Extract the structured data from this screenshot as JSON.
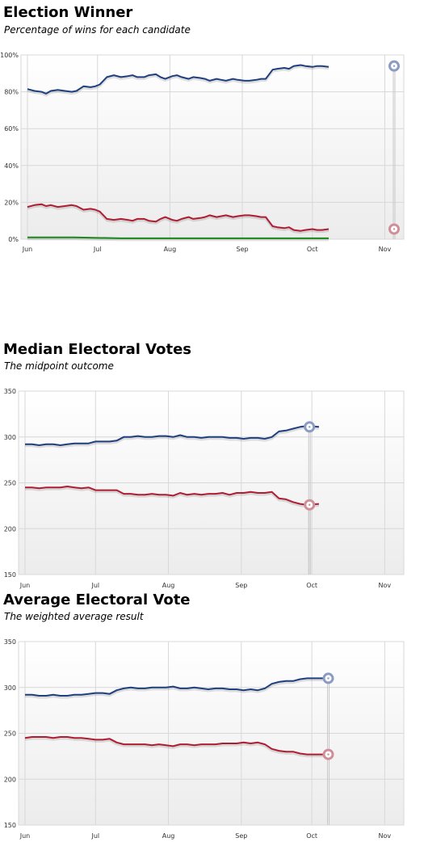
{
  "charts": {
    "winner": {
      "title": "Election Winner",
      "subtitle": "Percentage of wins for each candidate"
    },
    "median": {
      "title": "Median Electoral Votes",
      "subtitle": "The midpoint outcome"
    },
    "average": {
      "title": "Average Electoral Vote",
      "subtitle": "The weighted average result"
    }
  },
  "colors": {
    "democrat": "#1f3f7f",
    "republican": "#b01c32",
    "other": "#1a8a1a",
    "democrat_marker": "#8a9cc4",
    "republican_marker": "#d08e98",
    "grid": "#d8d8d8",
    "plot_top": "#ffffff",
    "plot_bottom": "#ececec"
  },
  "chart_data": [
    {
      "id": "winner",
      "type": "line",
      "title": "Election Winner",
      "subtitle": "Percentage of wins for each candidate",
      "x_ticks": [
        "Jun",
        "Jul",
        "Aug",
        "Sep",
        "Oct",
        "Nov"
      ],
      "y_ticks": [
        "0%",
        "20%",
        "40%",
        "60%",
        "80%",
        "100%"
      ],
      "ylim": [
        0,
        100
      ],
      "x_range_days": [
        0,
        157
      ],
      "grid": true,
      "series": [
        {
          "key": "democrat",
          "days": [
            0,
            3,
            6,
            8,
            10,
            13,
            16,
            19,
            21,
            24,
            27,
            29,
            31,
            34,
            37,
            40,
            43,
            45,
            47,
            50,
            52,
            55,
            57,
            59,
            62,
            64,
            66,
            69,
            71,
            74,
            76,
            78,
            81,
            83,
            85,
            88,
            90,
            93,
            95,
            98,
            100,
            102,
            105,
            107,
            110,
            112,
            114,
            117,
            119,
            122,
            124,
            126,
            129
          ],
          "values": [
            81.5,
            80.5,
            80,
            79,
            80.5,
            81,
            80.5,
            80,
            80.5,
            83,
            82.5,
            83,
            84,
            88,
            89,
            88,
            88.5,
            89,
            88,
            88,
            89,
            89.5,
            88,
            87,
            88.5,
            89,
            88,
            87,
            88,
            87.5,
            87,
            86,
            87,
            86.5,
            86,
            87,
            86.5,
            86,
            86,
            86.5,
            87,
            87,
            92,
            92.5,
            93,
            92.5,
            94,
            94.5,
            94,
            93.5,
            94,
            94,
            93.5
          ]
        },
        {
          "key": "republican",
          "days": [
            0,
            3,
            6,
            8,
            10,
            13,
            16,
            19,
            21,
            24,
            27,
            29,
            31,
            34,
            37,
            40,
            43,
            45,
            47,
            50,
            52,
            55,
            57,
            59,
            62,
            64,
            66,
            69,
            71,
            74,
            76,
            78,
            81,
            83,
            85,
            88,
            90,
            93,
            95,
            98,
            100,
            102,
            105,
            107,
            110,
            112,
            114,
            117,
            119,
            122,
            124,
            126,
            129
          ],
          "values": [
            17.5,
            18.5,
            19,
            18,
            18.5,
            17.5,
            18,
            18.5,
            18,
            16,
            16.5,
            16,
            15,
            11,
            10.5,
            11,
            10.5,
            10,
            11,
            11,
            10,
            9.5,
            11,
            12,
            10.5,
            10,
            11,
            12,
            11,
            11.5,
            12,
            13,
            12,
            12.5,
            13,
            12,
            12.5,
            13,
            13,
            12.5,
            12,
            12,
            7,
            6.5,
            6,
            6.5,
            5,
            4.5,
            5,
            5.5,
            5,
            5,
            5.5
          ]
        },
        {
          "key": "other",
          "days": [
            0,
            20,
            40,
            60,
            80,
            100,
            120,
            129
          ],
          "values": [
            1,
            1,
            0.5,
            0.5,
            0.5,
            0.5,
            0.5,
            0.5
          ]
        }
      ],
      "markers": [
        {
          "key": "democrat",
          "day": 157,
          "value": 94
        },
        {
          "key": "republican",
          "day": 157,
          "value": 5.5
        }
      ]
    },
    {
      "id": "median",
      "type": "line",
      "title": "Median Electoral Votes",
      "subtitle": "The midpoint outcome",
      "x_ticks": [
        "Jun",
        "Jul",
        "Aug",
        "Sep",
        "Oct",
        "Nov"
      ],
      "y_ticks": [
        "150",
        "200",
        "250",
        "300",
        "350"
      ],
      "ylim": [
        150,
        350
      ],
      "x_range_days": [
        0,
        157
      ],
      "grid": true,
      "series": [
        {
          "key": "democrat",
          "days": [
            0,
            3,
            6,
            9,
            12,
            15,
            18,
            21,
            24,
            27,
            30,
            33,
            36,
            39,
            42,
            45,
            48,
            51,
            54,
            57,
            60,
            63,
            66,
            69,
            72,
            75,
            78,
            81,
            84,
            87,
            90,
            93,
            96,
            99,
            102,
            105,
            108,
            111,
            114,
            117,
            120,
            125
          ],
          "values": [
            292,
            292,
            291,
            292,
            292,
            291,
            292,
            293,
            293,
            293,
            295,
            295,
            295,
            296,
            300,
            300,
            301,
            300,
            300,
            301,
            301,
            300,
            302,
            300,
            300,
            299,
            300,
            300,
            300,
            299,
            299,
            298,
            299,
            299,
            298,
            300,
            306,
            307,
            309,
            311,
            312,
            311
          ]
        },
        {
          "key": "republican",
          "days": [
            0,
            3,
            6,
            9,
            12,
            15,
            18,
            21,
            24,
            27,
            30,
            33,
            36,
            39,
            42,
            45,
            48,
            51,
            54,
            57,
            60,
            63,
            66,
            69,
            72,
            75,
            78,
            81,
            84,
            87,
            90,
            93,
            96,
            99,
            102,
            105,
            108,
            111,
            114,
            117,
            120,
            125
          ],
          "values": [
            245,
            245,
            244,
            245,
            245,
            245,
            246,
            245,
            244,
            245,
            242,
            242,
            242,
            242,
            238,
            238,
            237,
            237,
            238,
            237,
            237,
            236,
            239,
            237,
            238,
            237,
            238,
            238,
            239,
            237,
            239,
            239,
            240,
            239,
            239,
            240,
            233,
            232,
            229,
            227,
            226,
            227
          ]
        }
      ],
      "markers": [
        {
          "key": "democrat",
          "day": 121,
          "value": 311
        },
        {
          "key": "republican",
          "day": 121,
          "value": 226
        }
      ]
    },
    {
      "id": "average",
      "type": "line",
      "title": "Average Electoral Vote",
      "subtitle": "The weighted average result",
      "x_ticks": [
        "Jun",
        "Jul",
        "Aug",
        "Sep",
        "Oct",
        "Nov"
      ],
      "y_ticks": [
        "150",
        "200",
        "250",
        "300",
        "350"
      ],
      "ylim": [
        150,
        350
      ],
      "x_range_days": [
        0,
        157
      ],
      "grid": true,
      "series": [
        {
          "key": "democrat",
          "days": [
            0,
            3,
            6,
            9,
            12,
            15,
            18,
            21,
            24,
            27,
            30,
            33,
            36,
            39,
            42,
            45,
            48,
            51,
            54,
            57,
            60,
            63,
            66,
            69,
            72,
            75,
            78,
            81,
            84,
            87,
            90,
            93,
            96,
            99,
            102,
            105,
            108,
            111,
            114,
            117,
            120,
            125,
            129
          ],
          "values": [
            292,
            292,
            291,
            291,
            292,
            291,
            291,
            292,
            292,
            293,
            294,
            294,
            293,
            297,
            299,
            300,
            299,
            299,
            300,
            300,
            300,
            301,
            299,
            299,
            300,
            299,
            298,
            299,
            299,
            298,
            298,
            297,
            298,
            297,
            299,
            304,
            306,
            307,
            307,
            309,
            310,
            310,
            310
          ]
        },
        {
          "key": "republican",
          "days": [
            0,
            3,
            6,
            9,
            12,
            15,
            18,
            21,
            24,
            27,
            30,
            33,
            36,
            39,
            42,
            45,
            48,
            51,
            54,
            57,
            60,
            63,
            66,
            69,
            72,
            75,
            78,
            81,
            84,
            87,
            90,
            93,
            96,
            99,
            102,
            105,
            108,
            111,
            114,
            117,
            120,
            125,
            129
          ],
          "values": [
            245,
            246,
            246,
            246,
            245,
            246,
            246,
            245,
            245,
            244,
            243,
            243,
            244,
            240,
            238,
            238,
            238,
            238,
            237,
            238,
            237,
            236,
            238,
            238,
            237,
            238,
            238,
            238,
            239,
            239,
            239,
            240,
            239,
            240,
            238,
            233,
            231,
            230,
            230,
            228,
            227,
            227,
            227
          ]
        }
      ],
      "markers": [
        {
          "key": "democrat",
          "day": 129,
          "value": 310
        },
        {
          "key": "republican",
          "day": 129,
          "value": 227
        }
      ]
    }
  ]
}
